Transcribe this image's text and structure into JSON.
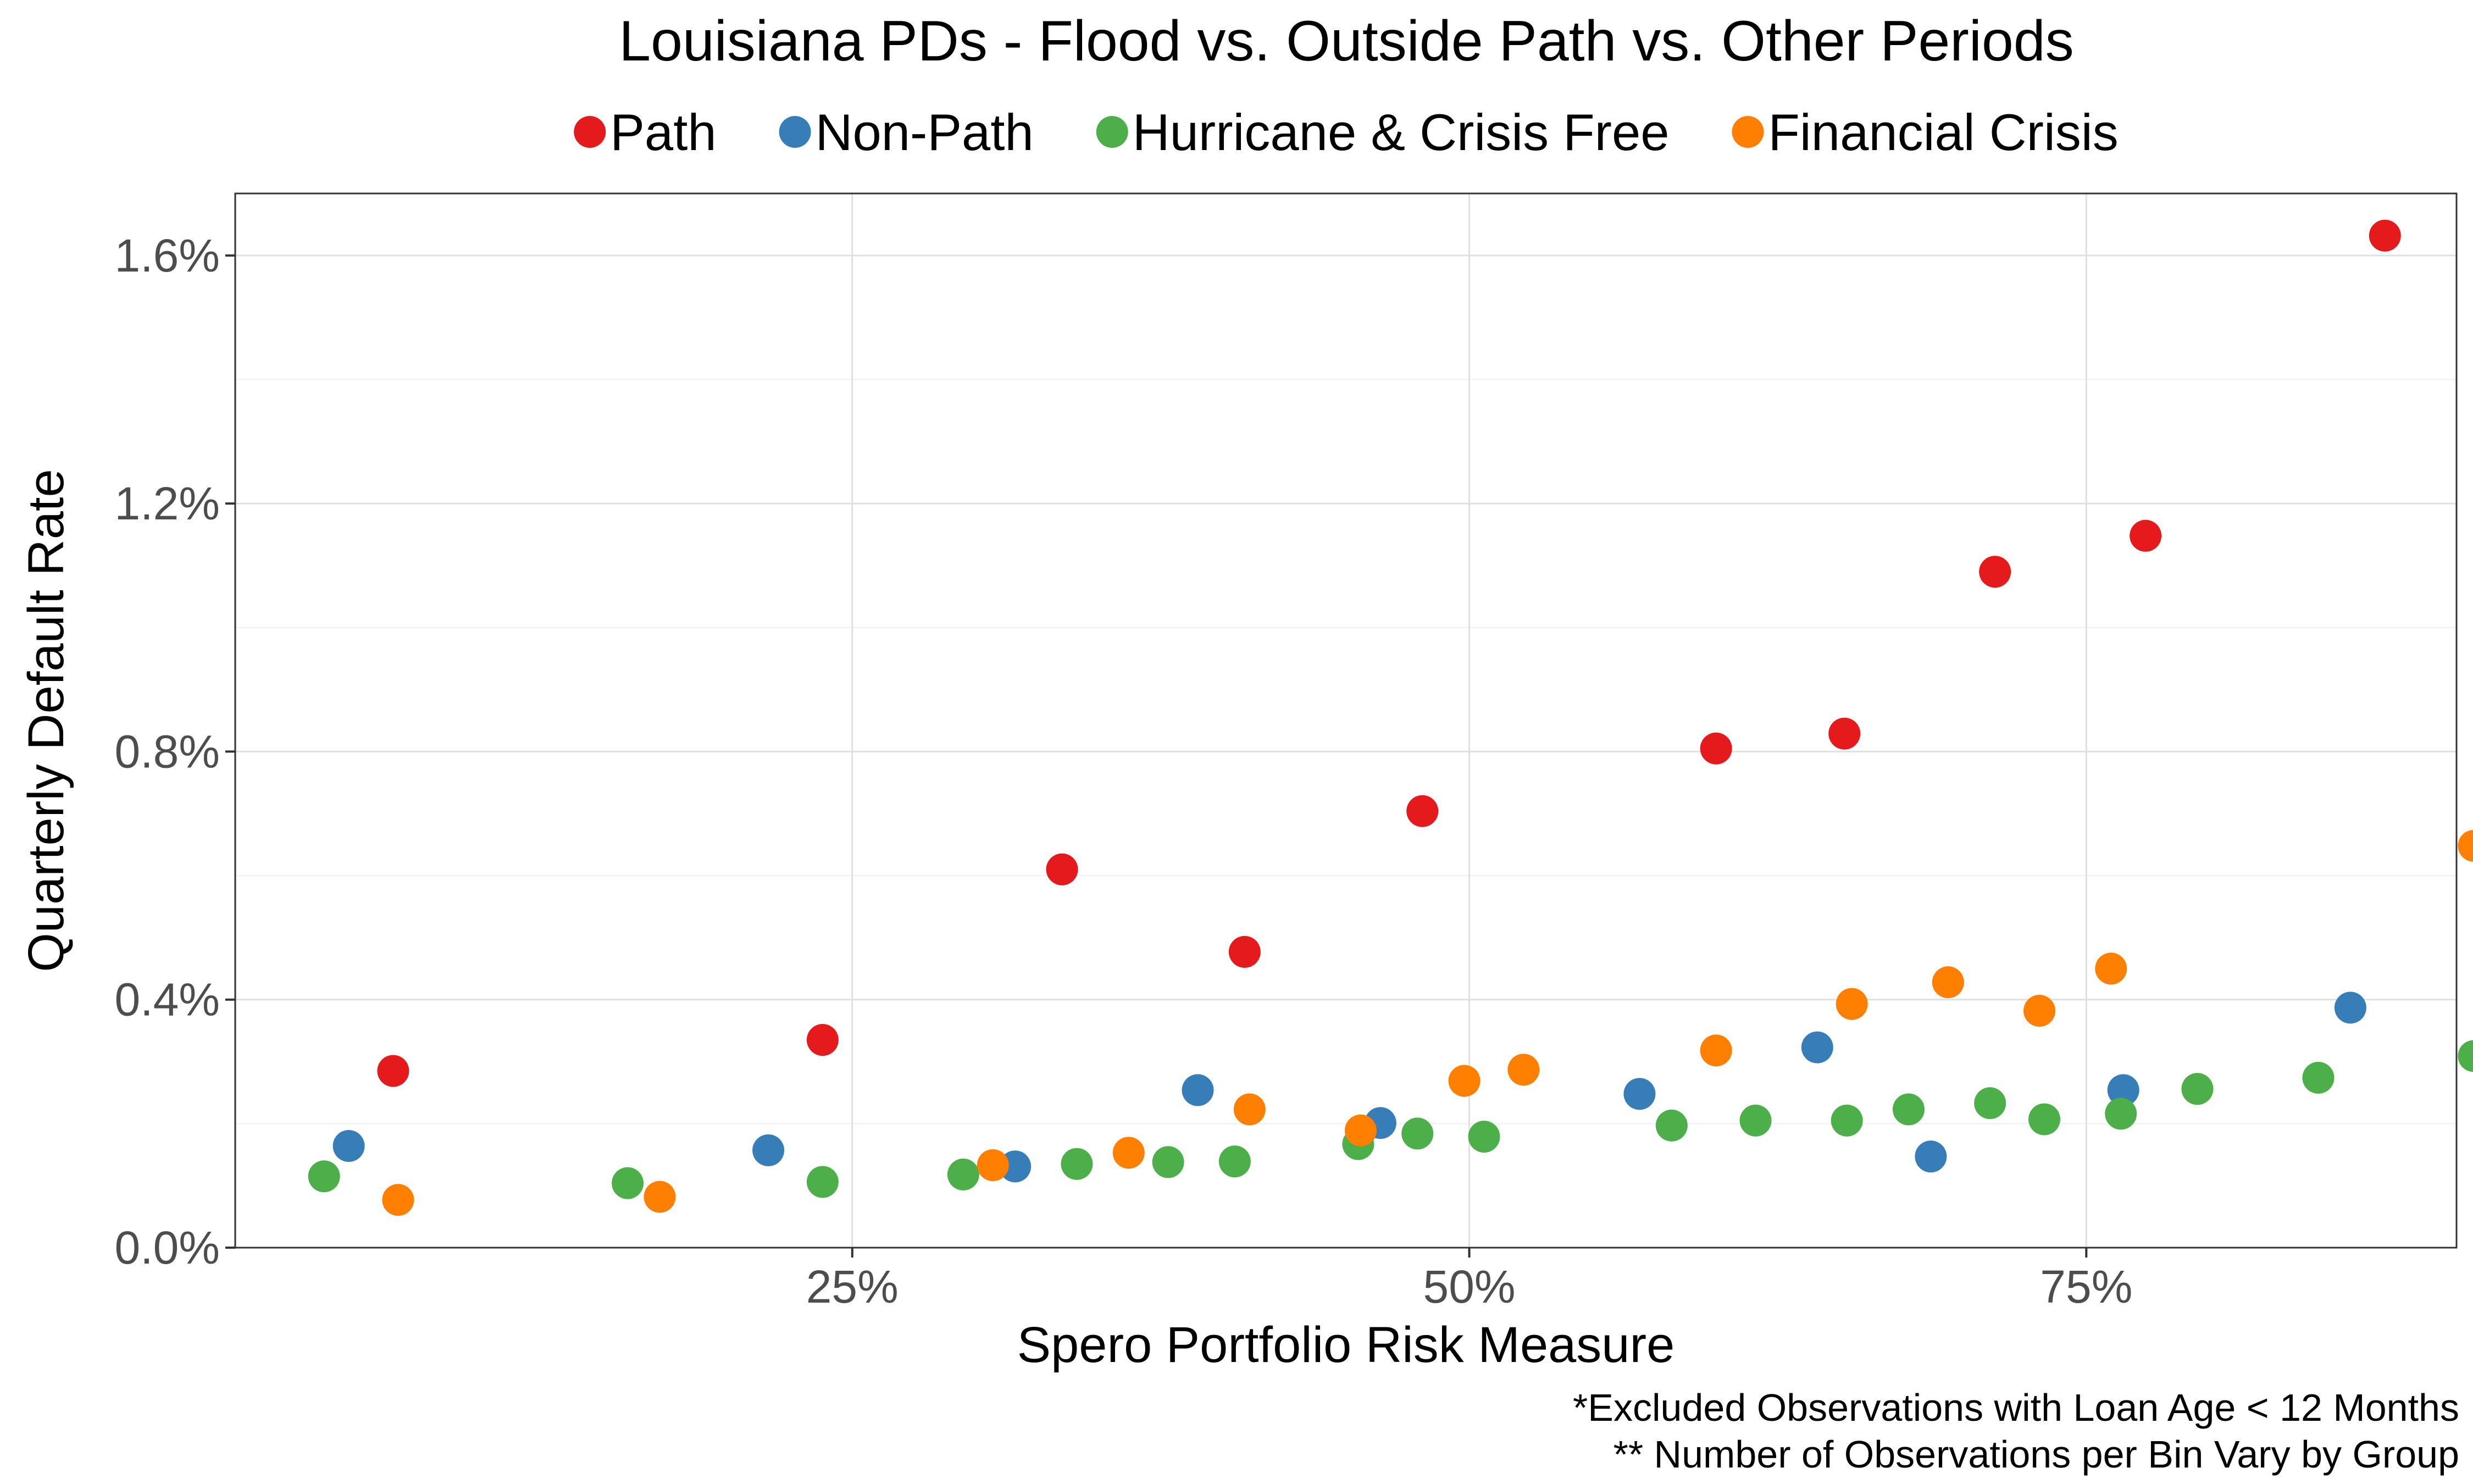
{
  "chart_data": {
    "type": "scatter",
    "title": "Louisiana PDs - Flood vs. Outside Path vs. Other Periods",
    "xlabel": "Spero Portfolio Risk Measure",
    "ylabel": "Quarterly Default Rate",
    "xlim": [
      0.0,
      0.9
    ],
    "ylim": [
      0.0,
      0.017
    ],
    "x_ticks": [
      {
        "value": 0.25,
        "label": "25%"
      },
      {
        "value": 0.5,
        "label": "50%"
      },
      {
        "value": 0.75,
        "label": "75%"
      }
    ],
    "y_ticks": [
      {
        "value": 0.0,
        "label": "0.0%"
      },
      {
        "value": 0.004,
        "label": "0.4%"
      },
      {
        "value": 0.008,
        "label": "0.8%"
      },
      {
        "value": 0.012,
        "label": "1.2%"
      },
      {
        "value": 0.016,
        "label": "1.6%"
      }
    ],
    "grid": true,
    "legend_position": "top",
    "captions": [
      "*Excluded Observations with Loan Age < 12 Months",
      "** Number of Observations per Bin Vary by Group"
    ],
    "series": [
      {
        "name": "Path",
        "color": "#e41a1c",
        "points": [
          {
            "x": 0.064,
            "y": 0.00285
          },
          {
            "x": 0.238,
            "y": 0.00335
          },
          {
            "x": 0.335,
            "y": 0.0061
          },
          {
            "x": 0.409,
            "y": 0.00477
          },
          {
            "x": 0.481,
            "y": 0.00704
          },
          {
            "x": 0.6,
            "y": 0.00805
          },
          {
            "x": 0.652,
            "y": 0.00829
          },
          {
            "x": 0.713,
            "y": 0.0109
          },
          {
            "x": 0.774,
            "y": 0.01148
          },
          {
            "x": 0.871,
            "y": 0.01632
          }
        ]
      },
      {
        "name": "Non-Path",
        "color": "#377eb8",
        "points": [
          {
            "x": 0.046,
            "y": 0.00164
          },
          {
            "x": 0.216,
            "y": 0.00157
          },
          {
            "x": 0.316,
            "y": 0.00131
          },
          {
            "x": 0.39,
            "y": 0.00254
          },
          {
            "x": 0.464,
            "y": 0.00201
          },
          {
            "x": 0.569,
            "y": 0.00248
          },
          {
            "x": 0.641,
            "y": 0.00323
          },
          {
            "x": 0.687,
            "y": 0.00147
          },
          {
            "x": 0.765,
            "y": 0.00254
          },
          {
            "x": 0.857,
            "y": 0.00387
          }
        ]
      },
      {
        "name": "Hurricane & Crisis Free",
        "color": "#4daf4a",
        "points": [
          {
            "x": 0.036,
            "y": 0.00115
          },
          {
            "x": 0.159,
            "y": 0.00104
          },
          {
            "x": 0.238,
            "y": 0.00106
          },
          {
            "x": 0.295,
            "y": 0.00118
          },
          {
            "x": 0.341,
            "y": 0.00135
          },
          {
            "x": 0.378,
            "y": 0.00138
          },
          {
            "x": 0.405,
            "y": 0.00139
          },
          {
            "x": 0.455,
            "y": 0.00167
          },
          {
            "x": 0.479,
            "y": 0.00184
          },
          {
            "x": 0.506,
            "y": 0.00179
          },
          {
            "x": 0.582,
            "y": 0.00197
          },
          {
            "x": 0.616,
            "y": 0.00205
          },
          {
            "x": 0.653,
            "y": 0.00205
          },
          {
            "x": 0.678,
            "y": 0.00223
          },
          {
            "x": 0.711,
            "y": 0.00233
          },
          {
            "x": 0.733,
            "y": 0.00207
          },
          {
            "x": 0.764,
            "y": 0.00216
          },
          {
            "x": 0.795,
            "y": 0.00256
          },
          {
            "x": 0.844,
            "y": 0.00274
          },
          {
            "x": 0.907,
            "y": 0.00309
          }
        ]
      },
      {
        "name": "Financial Crisis",
        "color": "#ff7f00",
        "points": [
          {
            "x": 0.066,
            "y": 0.00077
          },
          {
            "x": 0.172,
            "y": 0.00082
          },
          {
            "x": 0.307,
            "y": 0.00133
          },
          {
            "x": 0.362,
            "y": 0.00153
          },
          {
            "x": 0.411,
            "y": 0.00223
          },
          {
            "x": 0.456,
            "y": 0.00189
          },
          {
            "x": 0.498,
            "y": 0.00269
          },
          {
            "x": 0.522,
            "y": 0.00287
          },
          {
            "x": 0.6,
            "y": 0.00318
          },
          {
            "x": 0.655,
            "y": 0.00393
          },
          {
            "x": 0.694,
            "y": 0.00428
          },
          {
            "x": 0.731,
            "y": 0.00382
          },
          {
            "x": 0.76,
            "y": 0.0045
          },
          {
            "x": 0.907,
            "y": 0.00648
          }
        ]
      }
    ]
  }
}
